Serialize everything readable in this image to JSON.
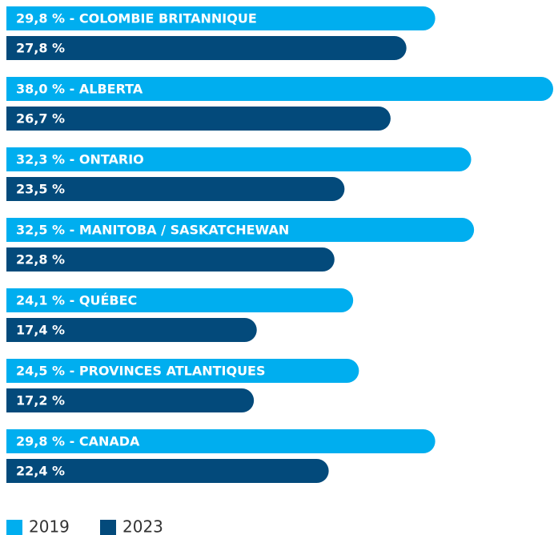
{
  "chart_data": {
    "type": "bar",
    "orientation": "horizontal",
    "xlim": [
      0,
      38
    ],
    "legend": "bottom-left",
    "series": [
      {
        "name": "2019",
        "color": "#00aeef",
        "values": [
          29.8,
          38.0,
          32.3,
          32.5,
          24.1,
          24.5,
          29.8
        ],
        "value_labels": [
          "29,8 % - COLOMBIE BRITANNIQUE",
          "38,0 % - ALBERTA",
          "32,3 % - ONTARIO",
          "32,5 % - MANITOBA / SASKATCHEWAN",
          "24,1 % - QUÉBEC",
          "24,5 % - PROVINCES ATLANTIQUES",
          "29,8 % - CANADA"
        ]
      },
      {
        "name": "2023",
        "color": "#034a7b",
        "values": [
          27.8,
          26.7,
          23.5,
          22.8,
          17.4,
          17.2,
          22.4
        ],
        "value_labels": [
          "27,8 %",
          "26,7 %",
          "23,5 %",
          "22,8 %",
          "17,4 %",
          "17,2 %",
          "22,4 %"
        ]
      }
    ]
  }
}
